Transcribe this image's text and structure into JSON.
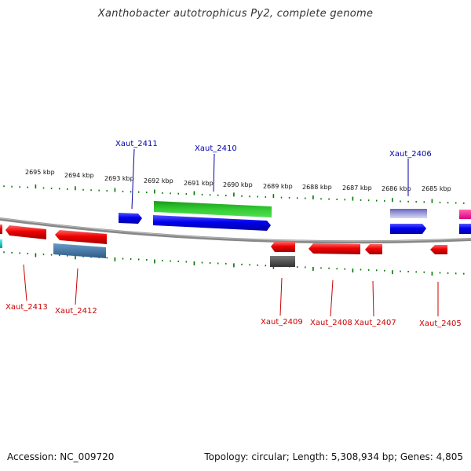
{
  "title": "Xanthobacter autotrophicus Py2, complete genome",
  "footer": {
    "accession": "Accession: NC_009720",
    "summary": "Topology: circular; Length: 5,308,934 bp; Genes: 4,805"
  },
  "kbp_labels": [
    "2695 kbp",
    "2694 kbp",
    "2693 kbp",
    "2692 kbp",
    "2691 kbp",
    "2690 kbp",
    "2689 kbp",
    "2688 kbp",
    "2687 kbp",
    "2686 kbp",
    "2685 kbp"
  ],
  "gene_labels": {
    "top": [
      "Xaut_2411",
      "Xaut_2410",
      "Xaut_2406"
    ],
    "bottom": [
      "Xaut_2413",
      "Xaut_2412",
      "Xaut_2409",
      "Xaut_2408",
      "Xaut_2407",
      "Xaut_2405"
    ]
  },
  "colors": {
    "forward_strand": "#0000ee",
    "reverse_strand": "#ee0000",
    "backbone": "#888888",
    "ticks": "#007700",
    "label_top": "#0000aa",
    "label_bottom": "#cc0000"
  }
}
